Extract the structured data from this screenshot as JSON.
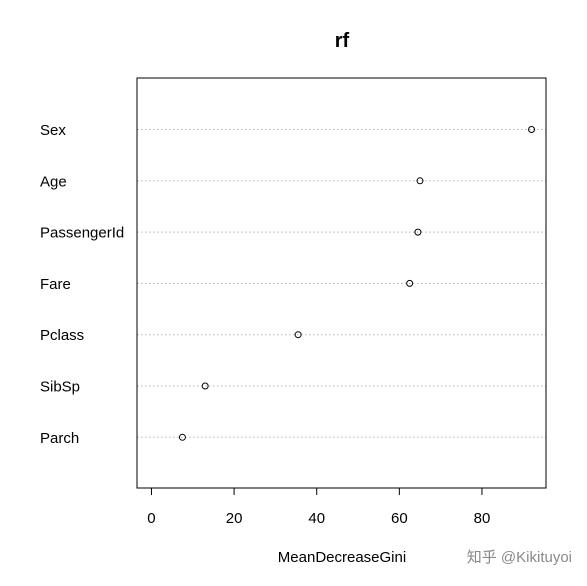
{
  "chart_data": {
    "type": "scatter",
    "title": "rf",
    "xlabel": "MeanDecreaseGini",
    "ylabel": "",
    "categories": [
      "Sex",
      "Age",
      "PassengerId",
      "Fare",
      "Pclass",
      "SibSp",
      "Parch"
    ],
    "values": [
      92.0,
      65.0,
      64.5,
      62.5,
      35.5,
      13.0,
      7.5
    ],
    "xlim": [
      -3.5,
      95.5
    ],
    "xticks": [
      0,
      20,
      40,
      60,
      80
    ],
    "grid": "dotted horizontal per category",
    "legend": "none"
  },
  "watermark": "知乎 @Kikituyoi"
}
